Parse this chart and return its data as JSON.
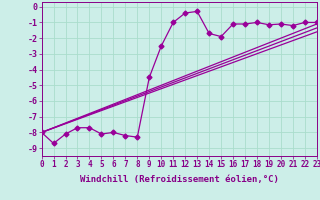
{
  "xlabel": "Windchill (Refroidissement éolien,°C)",
  "bg_color": "#cceee8",
  "line_color": "#990099",
  "grid_color": "#aaddcc",
  "xlim": [
    0,
    23
  ],
  "ylim": [
    -9.5,
    0.3
  ],
  "yticks": [
    0,
    -1,
    -2,
    -3,
    -4,
    -5,
    -6,
    -7,
    -8,
    -9
  ],
  "xticks": [
    0,
    1,
    2,
    3,
    4,
    5,
    6,
    7,
    8,
    9,
    10,
    11,
    12,
    13,
    14,
    15,
    16,
    17,
    18,
    19,
    20,
    21,
    22,
    23
  ],
  "main_x": [
    0,
    1,
    2,
    3,
    4,
    5,
    6,
    7,
    8,
    9,
    10,
    11,
    12,
    13,
    14,
    15,
    16,
    17,
    18,
    19,
    20,
    21,
    22,
    23
  ],
  "main_y": [
    -8.0,
    -8.7,
    -8.1,
    -7.7,
    -7.7,
    -8.1,
    -8.0,
    -8.2,
    -8.3,
    -4.5,
    -2.5,
    -1.0,
    -0.4,
    -0.3,
    -1.7,
    -1.9,
    -1.1,
    -1.1,
    -1.0,
    -1.15,
    -1.1,
    -1.2,
    -1.0,
    -1.0
  ],
  "trend1_x": [
    0,
    23
  ],
  "trend1_y": [
    -8.0,
    -1.1
  ],
  "trend2_x": [
    0,
    23
  ],
  "trend2_y": [
    -8.0,
    -1.35
  ],
  "trend3_x": [
    0,
    23
  ],
  "trend3_y": [
    -8.0,
    -1.6
  ],
  "marker": "D",
  "marker_size": 2.5,
  "linewidth": 0.9,
  "font_color": "#880088",
  "font_size_tick": 5.5,
  "font_size_label": 6.5
}
